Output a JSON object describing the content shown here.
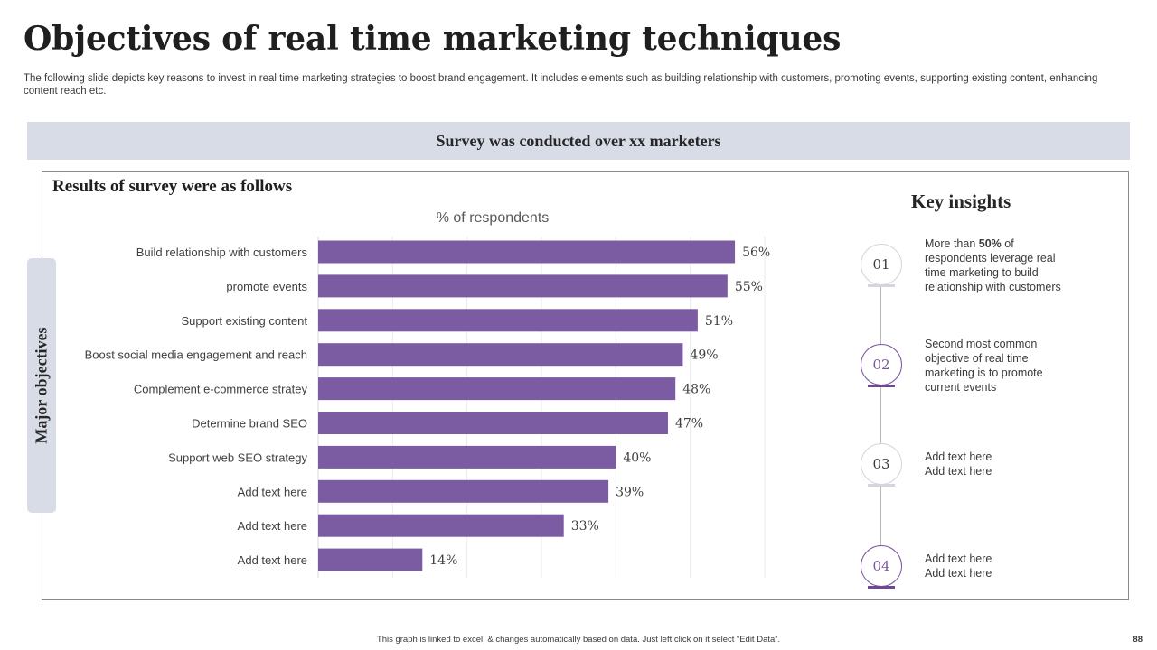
{
  "slide": {
    "title": "Objectives of real time marketing techniques",
    "subtitle": "The following slide depicts key reasons to invest in real time marketing strategies to boost brand engagement. It includes elements such as building relationship with customers, promoting events, supporting existing content, enhancing content reach etc.",
    "banner": "Survey was conducted over xx marketers",
    "results_heading": "Results of survey were as follows",
    "side_tab": "Major objectives",
    "footer_note": "This graph is linked to excel, & changes automatically based on data. Just left click on it select “Edit Data”.",
    "page_number": "88"
  },
  "chart_data": {
    "type": "bar",
    "orientation": "horizontal",
    "title": "% of respondents",
    "categories": [
      "Build relationship with customers",
      "promote events",
      "Support existing content",
      "Boost social media engagement and reach",
      "Complement e-commerce stratey",
      "Determine brand SEO",
      "Support web SEO strategy",
      "Add text here",
      "Add text here",
      "Add text here"
    ],
    "values": [
      56,
      55,
      51,
      49,
      48,
      47,
      40,
      39,
      33,
      14
    ],
    "value_suffix": "%",
    "xlim": [
      0,
      60
    ],
    "grid_step": 10,
    "grid": true,
    "bar_color": "#7b5ba1",
    "gridline_color": "#ebebeb"
  },
  "insights": {
    "title": "Key insights",
    "items": [
      {
        "number": "01",
        "parts": [
          {
            "text": "More than ",
            "bold": false
          },
          {
            "text": "50%",
            "bold": true
          },
          {
            "text": " of respondents leverage  real time marketing to build relationship with customers",
            "bold": false
          }
        ],
        "accent": false
      },
      {
        "number": "02",
        "parts": [
          {
            "text": "Second most common objective of real time marketing is to promote current events",
            "bold": false
          }
        ],
        "accent": true
      },
      {
        "number": "03",
        "parts": [
          {
            "text": "Add text here\nAdd text here",
            "bold": false
          }
        ],
        "accent": false
      },
      {
        "number": "04",
        "parts": [
          {
            "text": "Add text here\nAdd text here",
            "bold": false
          }
        ],
        "accent": true
      }
    ]
  },
  "colors": {
    "accent": "#7b56a0",
    "banner_bg": "#d7dce6"
  }
}
